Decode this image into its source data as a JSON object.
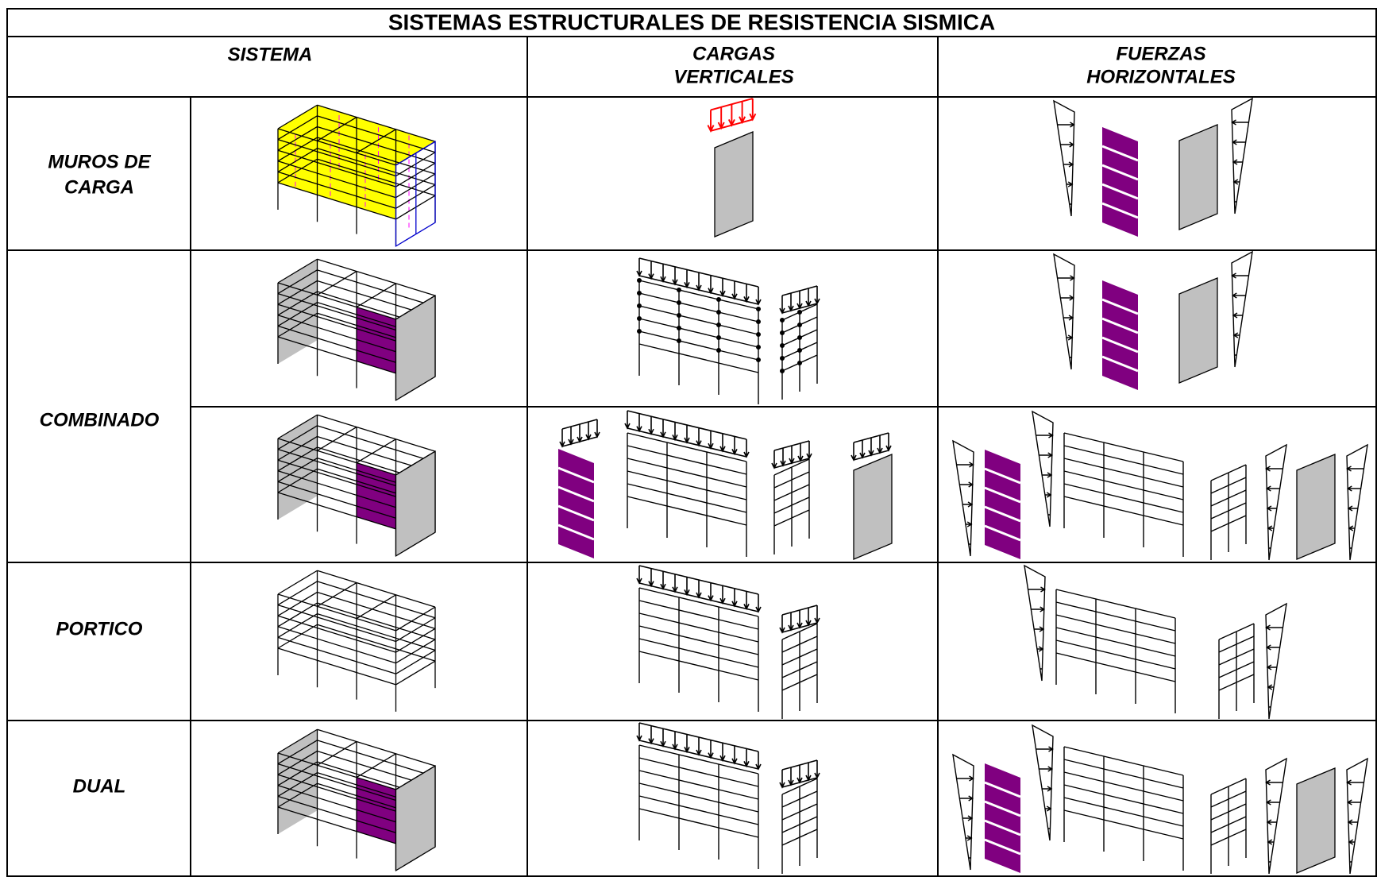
{
  "title": "SISTEMAS ESTRUCTURALES DE RESISTENCIA SISMICA",
  "header": {
    "system": "SISTEMA",
    "vertical_loads": [
      "CARGAS",
      "VERTICALES"
    ],
    "horizontal_forces": [
      "FUERZAS",
      "HORIZONTALES"
    ]
  },
  "rows": [
    [
      "MUROS DE",
      "CARGA"
    ],
    [
      "COMBINADO"
    ],
    [
      "PORTICO"
    ],
    [
      "DUAL"
    ]
  ]
}
